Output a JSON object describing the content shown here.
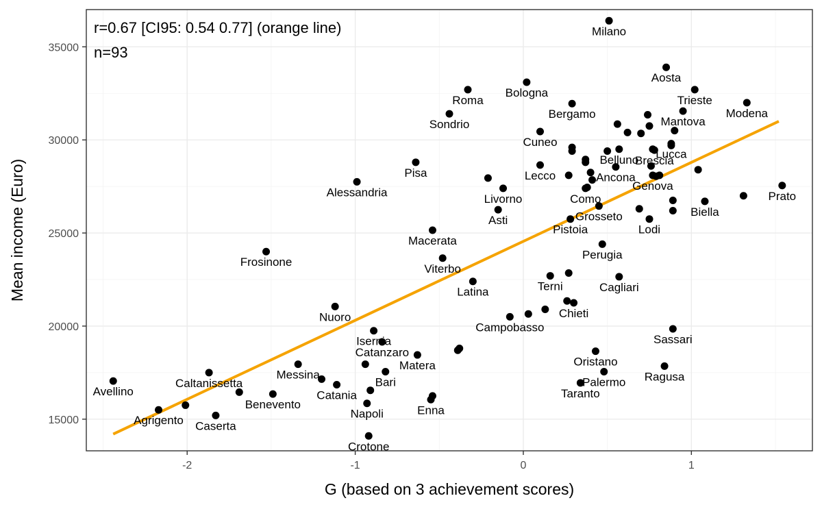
{
  "chart_data": {
    "type": "scatter",
    "title": "",
    "xlabel": "G (based on 3 achievement scores)",
    "ylabel": "Mean income (Euro)",
    "xlim": [
      -2.6,
      1.72
    ],
    "ylim": [
      13300,
      37000
    ],
    "xticks": [
      -2,
      -1,
      0,
      1
    ],
    "xtick_labels": [
      "-2",
      "-1",
      "0",
      "1"
    ],
    "yticks": [
      15000,
      20000,
      25000,
      30000,
      35000
    ],
    "ytick_labels": [
      "15000",
      "20000",
      "25000",
      "30000",
      "35000"
    ],
    "grid": true,
    "annotations": [
      "r=0.67 [CI95: 0.54 0.77] (orange line)",
      "n=93"
    ],
    "fit_line": {
      "color": "#f5a300",
      "x": [
        -2.44,
        1.52
      ],
      "y": [
        14200,
        31000
      ]
    },
    "point_color": "#000000",
    "labeled_points": [
      {
        "label": "Milano",
        "x": 0.51,
        "y": 36400
      },
      {
        "label": "Aosta",
        "x": 0.85,
        "y": 33900
      },
      {
        "label": "Trieste",
        "x": 1.02,
        "y": 32700
      },
      {
        "label": "Modena",
        "x": 1.33,
        "y": 32000
      },
      {
        "label": "Bologna",
        "x": 0.02,
        "y": 33100
      },
      {
        "label": "Roma",
        "x": -0.33,
        "y": 32700
      },
      {
        "label": "Sondrio",
        "x": -0.44,
        "y": 31400
      },
      {
        "label": "Bergamo",
        "x": 0.29,
        "y": 31950
      },
      {
        "label": "Mantova",
        "x": 0.95,
        "y": 31550
      },
      {
        "label": "Cuneo",
        "x": 0.1,
        "y": 30450
      },
      {
        "label": "Brescia",
        "x": 0.78,
        "y": 29450
      },
      {
        "label": "Lucca",
        "x": 0.88,
        "y": 29800
      },
      {
        "label": "Belluno",
        "x": 0.57,
        "y": 29500
      },
      {
        "label": "Pisa",
        "x": -0.64,
        "y": 28800
      },
      {
        "label": "Lecco",
        "x": 0.1,
        "y": 28650
      },
      {
        "label": "Ancona",
        "x": 0.55,
        "y": 28550
      },
      {
        "label": "Alessandria",
        "x": -0.99,
        "y": 27750
      },
      {
        "label": "Livorno",
        "x": -0.12,
        "y": 27400
      },
      {
        "label": "Como",
        "x": 0.37,
        "y": 27400
      },
      {
        "label": "Genova",
        "x": 0.77,
        "y": 28100
      },
      {
        "label": "Prato",
        "x": 1.54,
        "y": 27550
      },
      {
        "label": "Biella",
        "x": 1.08,
        "y": 26700
      },
      {
        "label": "Asti",
        "x": -0.15,
        "y": 26250
      },
      {
        "label": "Grosseto",
        "x": 0.45,
        "y": 26450
      },
      {
        "label": "Lodi",
        "x": 0.75,
        "y": 25750
      },
      {
        "label": "Pistoia",
        "x": 0.28,
        "y": 25750
      },
      {
        "label": "Macerata",
        "x": -0.54,
        "y": 25150
      },
      {
        "label": "Perugia",
        "x": 0.47,
        "y": 24400
      },
      {
        "label": "Frosinone",
        "x": -1.53,
        "y": 24000
      },
      {
        "label": "Viterbo",
        "x": -0.48,
        "y": 23650
      },
      {
        "label": "Cagliari",
        "x": 0.57,
        "y": 22650
      },
      {
        "label": "Terni",
        "x": 0.16,
        "y": 22700
      },
      {
        "label": "Latina",
        "x": -0.3,
        "y": 22400
      },
      {
        "label": "Chieti",
        "x": 0.3,
        "y": 21250
      },
      {
        "label": "Nuoro",
        "x": -1.12,
        "y": 21050
      },
      {
        "label": "Campobasso",
        "x": -0.08,
        "y": 20500
      },
      {
        "label": "Sassari",
        "x": 0.89,
        "y": 19850
      },
      {
        "label": "Isernia",
        "x": -0.89,
        "y": 19750
      },
      {
        "label": "Catanzaro",
        "x": -0.84,
        "y": 19150
      },
      {
        "label": "Matera",
        "x": -0.63,
        "y": 18450
      },
      {
        "label": "Oristano",
        "x": 0.43,
        "y": 18650
      },
      {
        "label": "Ragusa",
        "x": 0.84,
        "y": 17850
      },
      {
        "label": "Palermo",
        "x": 0.48,
        "y": 17550
      },
      {
        "label": "Taranto",
        "x": 0.34,
        "y": 16950
      },
      {
        "label": "Messina",
        "x": -1.34,
        "y": 17950
      },
      {
        "label": "Bari",
        "x": -0.82,
        "y": 17550
      },
      {
        "label": "Catania",
        "x": -1.11,
        "y": 16850
      },
      {
        "label": "Caltanissetta",
        "x": -1.87,
        "y": 17500
      },
      {
        "label": "Benevento",
        "x": -1.49,
        "y": 16350
      },
      {
        "label": "Napoli",
        "x": -0.93,
        "y": 15850
      },
      {
        "label": "Enna",
        "x": -0.55,
        "y": 16050
      },
      {
        "label": "Avellino",
        "x": -2.44,
        "y": 17050
      },
      {
        "label": "Agrigento",
        "x": -2.17,
        "y": 15500
      },
      {
        "label": "Caserta",
        "x": -1.83,
        "y": 15200
      },
      {
        "label": "Crotone",
        "x": -0.92,
        "y": 14100
      }
    ],
    "unlabeled_points": [
      {
        "x": -2.01,
        "y": 15750
      },
      {
        "x": -1.69,
        "y": 16450
      },
      {
        "x": -1.2,
        "y": 17150
      },
      {
        "x": -0.94,
        "y": 17950
      },
      {
        "x": -0.91,
        "y": 16550
      },
      {
        "x": -0.54,
        "y": 16250
      },
      {
        "x": -0.39,
        "y": 18700
      },
      {
        "x": -0.38,
        "y": 18800
      },
      {
        "x": 0.03,
        "y": 20650
      },
      {
        "x": 0.13,
        "y": 20900
      },
      {
        "x": 0.26,
        "y": 21350
      },
      {
        "x": 0.27,
        "y": 22850
      },
      {
        "x": -0.21,
        "y": 27950
      },
      {
        "x": 0.27,
        "y": 28100
      },
      {
        "x": 0.29,
        "y": 29400
      },
      {
        "x": 0.37,
        "y": 28800
      },
      {
        "x": 0.37,
        "y": 28950
      },
      {
        "x": 0.4,
        "y": 28250
      },
      {
        "x": 0.41,
        "y": 27850
      },
      {
        "x": 0.38,
        "y": 27450
      },
      {
        "x": 0.29,
        "y": 29600
      },
      {
        "x": 0.5,
        "y": 29400
      },
      {
        "x": 0.56,
        "y": 30850
      },
      {
        "x": 0.62,
        "y": 30400
      },
      {
        "x": 0.7,
        "y": 30350
      },
      {
        "x": 0.74,
        "y": 31350
      },
      {
        "x": 0.75,
        "y": 30750
      },
      {
        "x": 0.9,
        "y": 30500
      },
      {
        "x": 0.88,
        "y": 29700
      },
      {
        "x": 0.77,
        "y": 29500
      },
      {
        "x": 0.76,
        "y": 28600
      },
      {
        "x": 0.79,
        "y": 28050
      },
      {
        "x": 0.81,
        "y": 28100
      },
      {
        "x": 0.69,
        "y": 26300
      },
      {
        "x": 0.89,
        "y": 26750
      },
      {
        "x": 0.89,
        "y": 26200
      },
      {
        "x": 1.04,
        "y": 28400
      },
      {
        "x": 1.31,
        "y": 27000
      }
    ]
  }
}
